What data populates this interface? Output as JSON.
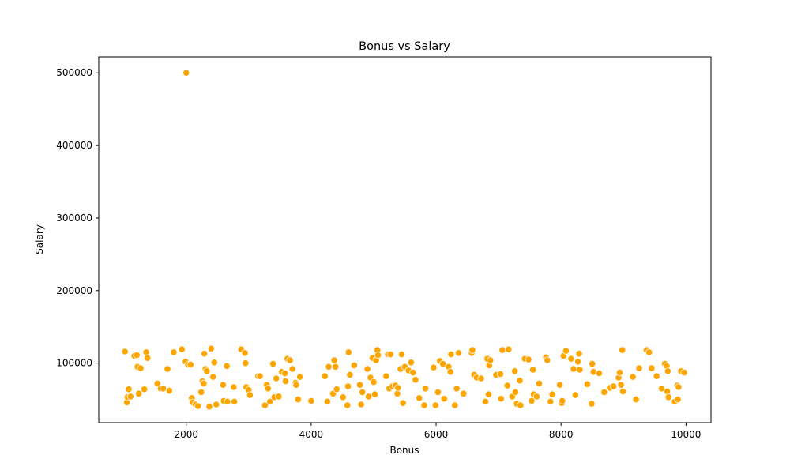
{
  "chart_data": {
    "type": "scatter",
    "title": "Bonus vs Salary",
    "xlabel": "Bonus",
    "ylabel": "Salary",
    "xlim": [
      600,
      10400
    ],
    "ylim": [
      18000,
      522000
    ],
    "xticks": [
      2000,
      4000,
      6000,
      8000,
      10000
    ],
    "yticks": [
      100000,
      200000,
      300000,
      400000,
      500000
    ],
    "grid": false,
    "point_color": "#ffa500",
    "point_edge_color": "#ffffff",
    "points": [
      [
        2000,
        500000
      ],
      [
        1020,
        116000
      ],
      [
        1050,
        46000
      ],
      [
        1060,
        53000
      ],
      [
        1080,
        64000
      ],
      [
        1110,
        54000
      ],
      [
        1170,
        110000
      ],
      [
        1210,
        111000
      ],
      [
        1220,
        95000
      ],
      [
        1240,
        58000
      ],
      [
        1270,
        93000
      ],
      [
        1330,
        64000
      ],
      [
        1360,
        115000
      ],
      [
        1380,
        107000
      ],
      [
        1540,
        72000
      ],
      [
        1590,
        65000
      ],
      [
        1630,
        65000
      ],
      [
        1700,
        92000
      ],
      [
        1730,
        62000
      ],
      [
        1800,
        115000
      ],
      [
        1930,
        119000
      ],
      [
        1990,
        102000
      ],
      [
        2030,
        98000
      ],
      [
        2070,
        98000
      ],
      [
        2090,
        52000
      ],
      [
        2100,
        46000
      ],
      [
        2150,
        43000
      ],
      [
        2190,
        41000
      ],
      [
        2240,
        60000
      ],
      [
        2260,
        75000
      ],
      [
        2280,
        72000
      ],
      [
        2290,
        113000
      ],
      [
        2310,
        92000
      ],
      [
        2330,
        89000
      ],
      [
        2370,
        40000
      ],
      [
        2400,
        120000
      ],
      [
        2430,
        81000
      ],
      [
        2450,
        101000
      ],
      [
        2480,
        43000
      ],
      [
        2590,
        70000
      ],
      [
        2600,
        48000
      ],
      [
        2650,
        96000
      ],
      [
        2660,
        47000
      ],
      [
        2760,
        67000
      ],
      [
        2770,
        47000
      ],
      [
        2880,
        119000
      ],
      [
        2940,
        114000
      ],
      [
        2950,
        100000
      ],
      [
        2960,
        67000
      ],
      [
        3000,
        63000
      ],
      [
        3020,
        56000
      ],
      [
        3150,
        82000
      ],
      [
        3180,
        82000
      ],
      [
        3260,
        42000
      ],
      [
        3290,
        70000
      ],
      [
        3310,
        65000
      ],
      [
        3340,
        47000
      ],
      [
        3390,
        99000
      ],
      [
        3410,
        53000
      ],
      [
        3440,
        79000
      ],
      [
        3480,
        54000
      ],
      [
        3530,
        88000
      ],
      [
        3580,
        86000
      ],
      [
        3590,
        75000
      ],
      [
        3620,
        106000
      ],
      [
        3660,
        104000
      ],
      [
        3700,
        92000
      ],
      [
        3750,
        73000
      ],
      [
        3760,
        70000
      ],
      [
        3790,
        50000
      ],
      [
        3820,
        81000
      ],
      [
        4000,
        48000
      ],
      [
        4220,
        82000
      ],
      [
        4260,
        47000
      ],
      [
        4280,
        95000
      ],
      [
        4350,
        58000
      ],
      [
        4370,
        104000
      ],
      [
        4390,
        95000
      ],
      [
        4410,
        64000
      ],
      [
        4510,
        53000
      ],
      [
        4580,
        42000
      ],
      [
        4590,
        68000
      ],
      [
        4600,
        115000
      ],
      [
        4620,
        84000
      ],
      [
        4690,
        97000
      ],
      [
        4780,
        70000
      ],
      [
        4800,
        43000
      ],
      [
        4820,
        60000
      ],
      [
        4900,
        92000
      ],
      [
        4920,
        54000
      ],
      [
        4950,
        80000
      ],
      [
        4980,
        107000
      ],
      [
        5000,
        74000
      ],
      [
        5020,
        57000
      ],
      [
        5040,
        104000
      ],
      [
        5060,
        118000
      ],
      [
        5070,
        111000
      ],
      [
        5200,
        82000
      ],
      [
        5230,
        112000
      ],
      [
        5250,
        65000
      ],
      [
        5270,
        112000
      ],
      [
        5300,
        68000
      ],
      [
        5350,
        69000
      ],
      [
        5380,
        58000
      ],
      [
        5390,
        66000
      ],
      [
        5430,
        92000
      ],
      [
        5450,
        112000
      ],
      [
        5470,
        45000
      ],
      [
        5500,
        95000
      ],
      [
        5560,
        90000
      ],
      [
        5600,
        101000
      ],
      [
        5630,
        87000
      ],
      [
        5670,
        77000
      ],
      [
        5730,
        52000
      ],
      [
        5810,
        42000
      ],
      [
        5830,
        65000
      ],
      [
        5960,
        94000
      ],
      [
        5990,
        42000
      ],
      [
        6030,
        60000
      ],
      [
        6060,
        103000
      ],
      [
        6110,
        99000
      ],
      [
        6130,
        51000
      ],
      [
        6200,
        95000
      ],
      [
        6230,
        88000
      ],
      [
        6240,
        112000
      ],
      [
        6300,
        42000
      ],
      [
        6330,
        65000
      ],
      [
        6360,
        114000
      ],
      [
        6440,
        58000
      ],
      [
        6570,
        114000
      ],
      [
        6580,
        118000
      ],
      [
        6610,
        84000
      ],
      [
        6650,
        80000
      ],
      [
        6720,
        79000
      ],
      [
        6790,
        47000
      ],
      [
        6820,
        106000
      ],
      [
        6840,
        57000
      ],
      [
        6850,
        97000
      ],
      [
        6870,
        104000
      ],
      [
        6960,
        84000
      ],
      [
        7030,
        85000
      ],
      [
        7040,
        51000
      ],
      [
        7060,
        118000
      ],
      [
        7140,
        69000
      ],
      [
        7160,
        119000
      ],
      [
        7220,
        54000
      ],
      [
        7260,
        89000
      ],
      [
        7270,
        60000
      ],
      [
        7290,
        44000
      ],
      [
        7340,
        76000
      ],
      [
        7350,
        42000
      ],
      [
        7420,
        106000
      ],
      [
        7480,
        105000
      ],
      [
        7530,
        48000
      ],
      [
        7550,
        91000
      ],
      [
        7560,
        57000
      ],
      [
        7610,
        54000
      ],
      [
        7650,
        72000
      ],
      [
        7760,
        108000
      ],
      [
        7780,
        104000
      ],
      [
        7830,
        47000
      ],
      [
        7860,
        57000
      ],
      [
        7980,
        70000
      ],
      [
        8010,
        45000
      ],
      [
        8020,
        48000
      ],
      [
        8040,
        110000
      ],
      [
        8080,
        117000
      ],
      [
        8160,
        106000
      ],
      [
        8200,
        92000
      ],
      [
        8230,
        56000
      ],
      [
        8270,
        102000
      ],
      [
        8290,
        113000
      ],
      [
        8300,
        91000
      ],
      [
        8420,
        71000
      ],
      [
        8490,
        44000
      ],
      [
        8500,
        99000
      ],
      [
        8520,
        88000
      ],
      [
        8610,
        86000
      ],
      [
        8690,
        60000
      ],
      [
        8780,
        66000
      ],
      [
        8840,
        68000
      ],
      [
        8920,
        80000
      ],
      [
        8940,
        87000
      ],
      [
        8960,
        70000
      ],
      [
        8980,
        118000
      ],
      [
        8990,
        61000
      ],
      [
        9150,
        81000
      ],
      [
        9200,
        50000
      ],
      [
        9250,
        93000
      ],
      [
        9370,
        118000
      ],
      [
        9410,
        115000
      ],
      [
        9450,
        93000
      ],
      [
        9530,
        82000
      ],
      [
        9610,
        65000
      ],
      [
        9660,
        99000
      ],
      [
        9690,
        96000
      ],
      [
        9710,
        89000
      ],
      [
        9700,
        61000
      ],
      [
        9720,
        53000
      ],
      [
        9820,
        47000
      ],
      [
        9860,
        69000
      ],
      [
        9870,
        50000
      ],
      [
        9880,
        67000
      ],
      [
        9920,
        89000
      ],
      [
        9970,
        87000
      ]
    ]
  }
}
